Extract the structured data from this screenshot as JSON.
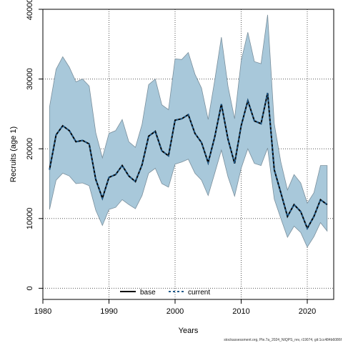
{
  "chart_data": {
    "type": "area",
    "xlabel": "Years",
    "ylabel": "Recruits (age 1)",
    "xlim": [
      1980,
      2024
    ],
    "ylim": [
      -1600,
      40000
    ],
    "xticks": [
      "1980",
      "1990",
      "2000",
      "2010",
      "2020"
    ],
    "yticks": [
      "0",
      "10000",
      "20000",
      "30000",
      "40000"
    ],
    "grid": true,
    "legend_position": "bottom-center",
    "band_color": "#a8c8da",
    "x": [
      1981,
      1982,
      1983,
      1984,
      1985,
      1986,
      1987,
      1988,
      1989,
      1990,
      1991,
      1992,
      1993,
      1994,
      1995,
      1996,
      1997,
      1998,
      1999,
      2000,
      2001,
      2002,
      2003,
      2004,
      2005,
      2006,
      2007,
      2008,
      2009,
      2010,
      2011,
      2012,
      2013,
      2014,
      2015,
      2016,
      2017,
      2018,
      2019,
      2020,
      2021,
      2022,
      2023
    ],
    "series": [
      {
        "name": "base",
        "color": "#000000",
        "style": "solid",
        "values": [
          17000,
          22000,
          23300,
          22600,
          21000,
          21200,
          20700,
          15600,
          12900,
          15900,
          16300,
          17600,
          16100,
          15300,
          17700,
          21800,
          22500,
          19700,
          19000,
          24100,
          24300,
          24900,
          22200,
          20900,
          18000,
          21700,
          26400,
          21400,
          17900,
          23300,
          26900,
          24000,
          23600,
          28000,
          17000,
          13700,
          10300,
          12000,
          11000,
          8600,
          10300,
          12700,
          12000
        ]
      },
      {
        "name": "current",
        "color": "#1f5a8a",
        "style": "dashed",
        "values": [
          17000,
          22000,
          23300,
          22600,
          21000,
          21200,
          20700,
          15600,
          12900,
          15900,
          16300,
          17600,
          16100,
          15300,
          17700,
          21800,
          22500,
          19700,
          19000,
          24100,
          24300,
          24900,
          22200,
          20900,
          18000,
          21700,
          26400,
          21400,
          17900,
          23300,
          26900,
          24000,
          23600,
          28000,
          17000,
          13700,
          10300,
          12000,
          11000,
          8600,
          10300,
          12700,
          12000
        ]
      }
    ],
    "band_upper": [
      26000,
      31400,
      33200,
      31700,
      29600,
      30000,
      29000,
      22300,
      18700,
      22200,
      22600,
      24200,
      21000,
      20200,
      23500,
      29200,
      30000,
      26300,
      25600,
      32900,
      32800,
      33800,
      30700,
      28700,
      24200,
      29800,
      36000,
      29000,
      24300,
      32600,
      36700,
      32500,
      32200,
      39200,
      23600,
      18100,
      14100,
      16300,
      15100,
      12200,
      13700,
      17600,
      17600
    ],
    "band_lower": [
      11300,
      15500,
      16500,
      16100,
      15000,
      15100,
      14700,
      11200,
      9000,
      11300,
      11600,
      12700,
      12000,
      11400,
      13300,
      16500,
      17200,
      15000,
      14500,
      17800,
      18100,
      18500,
      16500,
      15500,
      13300,
      16500,
      19800,
      16000,
      13200,
      17200,
      20000,
      17900,
      17600,
      20100,
      12800,
      10000,
      7300,
      8900,
      8000,
      5900,
      7400,
      9400,
      8200
    ]
  },
  "footer_text": "stockassessment.org, Ple.7a_2024_NIQPS_rev, r19074, git:1cc484b6086f"
}
